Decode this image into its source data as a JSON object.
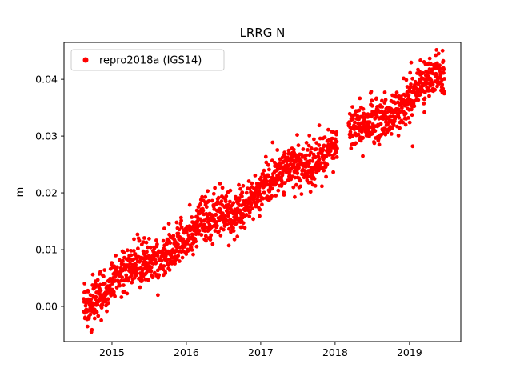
{
  "chart_data": {
    "type": "scatter",
    "title": "LRRG N",
    "xlabel": "",
    "ylabel": "m",
    "xlim": [
      2014.355,
      2019.69
    ],
    "ylim": [
      -0.0062,
      0.0465
    ],
    "xticks": [
      2015,
      2016,
      2017,
      2018,
      2019
    ],
    "yticks": [
      0.0,
      0.01,
      0.02,
      0.03,
      0.04
    ],
    "grid": false,
    "legend": {
      "location": "upper left",
      "entries": [
        {
          "label": "repro2018a (IGS14)",
          "color": "#ff0000",
          "marker": "circle"
        }
      ]
    },
    "series": [
      {
        "name": "repro2018a (IGS14)",
        "color": "#ff0000",
        "n_points": 1750,
        "seed": 20180101,
        "trend": {
          "x_start": 2014.62,
          "x_end": 2019.47,
          "y_at_start": 0.0008,
          "slope_per_year": 0.0082
        },
        "seasonal": {
          "amplitude": 0.001,
          "phase_year": 0.0
        },
        "noise_std": 0.0019,
        "outliers": {
          "rate": 0.03,
          "extra_std": 0.0035
        },
        "gaps": [
          [
            2018.03,
            2018.18
          ]
        ],
        "trend_points_read_from_chart": [
          [
            2014.65,
            0.001
          ],
          [
            2015.0,
            0.004
          ],
          [
            2016.0,
            0.013
          ],
          [
            2017.0,
            0.021
          ],
          [
            2018.0,
            0.029
          ],
          [
            2019.0,
            0.036
          ],
          [
            2019.45,
            0.04
          ]
        ]
      }
    ]
  }
}
